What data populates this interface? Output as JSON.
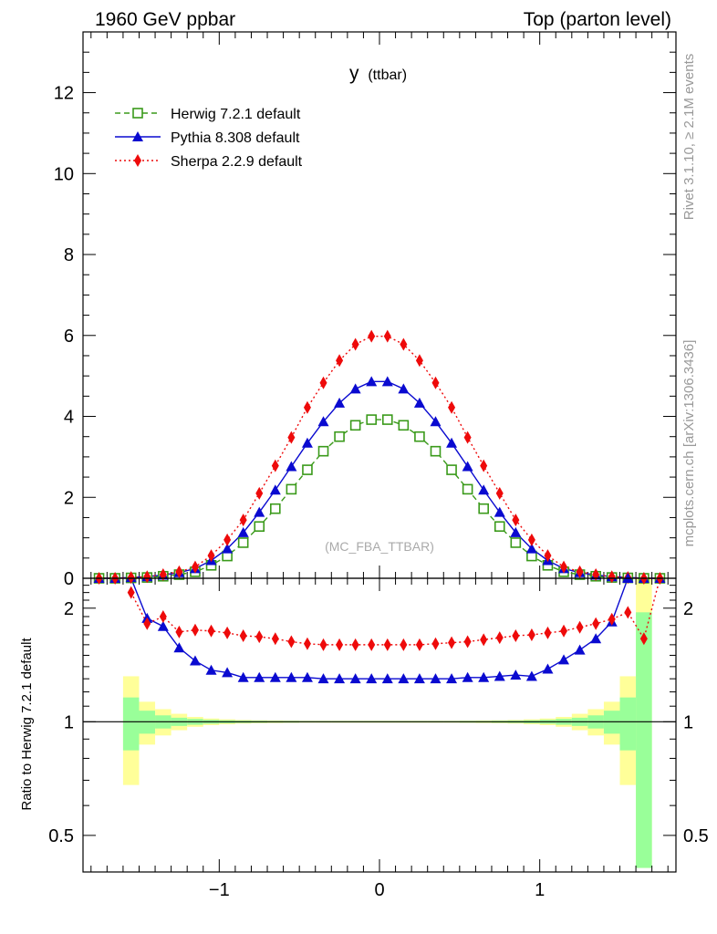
{
  "header": {
    "left": "1960 GeV ppbar",
    "right": "Top (parton level)"
  },
  "side": {
    "rivet": "Rivet 3.1.10, ≥ 2.1M events",
    "mcplots": "mcplots.cern.ch [arXiv:1306.3436]"
  },
  "chart_data": {
    "type": "line",
    "title_main": "y",
    "title_sub": "(ttbar)",
    "analysis": "(MC_FBA_TTBAR)",
    "ratio_ylabel": "Ratio to Herwig 7.2.1 default",
    "xlim": [
      -1.85,
      1.85
    ],
    "ylim": [
      0,
      13.5
    ],
    "ratio_ylim": [
      0.4,
      2.4
    ],
    "ratio_scale": "log",
    "x_ticks": [
      -1,
      0,
      1
    ],
    "x_tick_labels": [
      "−1",
      "0",
      "1"
    ],
    "y_ticks": [
      0,
      2,
      4,
      6,
      8,
      10,
      12
    ],
    "ratio_ticks": [
      0.5,
      1,
      2
    ],
    "ratio_tick_labels": [
      "0.5",
      "1",
      "2"
    ],
    "legend_position": "top-left",
    "x": [
      -1.75,
      -1.65,
      -1.55,
      -1.45,
      -1.35,
      -1.25,
      -1.15,
      -1.05,
      -0.95,
      -0.85,
      -0.75,
      -0.65,
      -0.55,
      -0.45,
      -0.35,
      -0.25,
      -0.15,
      -0.05,
      0.05,
      0.15,
      0.25,
      0.35,
      0.45,
      0.55,
      0.65,
      0.75,
      0.85,
      0.95,
      1.05,
      1.15,
      1.25,
      1.35,
      1.45,
      1.55,
      1.65,
      1.75
    ],
    "series": [
      {
        "name": "Herwig 7.2.1 default",
        "color": "#3a9a1a",
        "marker": "open-square",
        "linestyle": "dashed",
        "values": [
          0.0,
          0.0,
          0.01,
          0.02,
          0.05,
          0.09,
          0.16,
          0.32,
          0.55,
          0.88,
          1.28,
          1.72,
          2.2,
          2.68,
          3.14,
          3.5,
          3.78,
          3.92,
          3.92,
          3.78,
          3.5,
          3.14,
          2.68,
          2.2,
          1.72,
          1.28,
          0.88,
          0.55,
          0.32,
          0.16,
          0.09,
          0.05,
          0.02,
          0.01,
          0.0,
          0.0
        ]
      },
      {
        "name": "Pythia 8.308 default",
        "color": "#0a0ad0",
        "marker": "filled-triangle",
        "linestyle": "solid",
        "values": [
          0.0,
          0.0,
          0.02,
          0.04,
          0.08,
          0.14,
          0.24,
          0.44,
          0.73,
          1.13,
          1.63,
          2.18,
          2.76,
          3.34,
          3.87,
          4.33,
          4.68,
          4.86,
          4.86,
          4.68,
          4.33,
          3.87,
          3.34,
          2.76,
          2.18,
          1.63,
          1.13,
          0.73,
          0.44,
          0.24,
          0.14,
          0.08,
          0.04,
          0.02,
          0.0,
          0.0
        ]
      },
      {
        "name": "Sherpa 2.2.9 default",
        "color": "#ee0a0a",
        "marker": "filled-diamond",
        "linestyle": "dotted",
        "values": [
          0.0,
          0.0,
          0.02,
          0.04,
          0.09,
          0.16,
          0.28,
          0.56,
          0.95,
          1.44,
          2.1,
          2.78,
          3.48,
          4.22,
          4.83,
          5.38,
          5.78,
          5.98,
          5.98,
          5.78,
          5.38,
          4.83,
          4.22,
          3.48,
          2.78,
          2.1,
          1.44,
          0.95,
          0.56,
          0.28,
          0.16,
          0.09,
          0.04,
          0.02,
          0.0,
          0.0
        ]
      }
    ],
    "ratio": {
      "reference": 1.0,
      "band_x": [
        -1.55,
        -1.45,
        -1.35,
        -1.25,
        -1.15,
        -1.05,
        -0.95,
        -0.85,
        -0.75,
        -0.65,
        -0.55,
        -0.45,
        -0.35,
        -0.25,
        -0.15,
        -0.05,
        0.05,
        0.15,
        0.25,
        0.35,
        0.45,
        0.55,
        0.65,
        0.75,
        0.85,
        0.95,
        1.05,
        1.15,
        1.25,
        1.35,
        1.45,
        1.55,
        1.65
      ],
      "band_stat": [
        0.16,
        0.07,
        0.04,
        0.025,
        0.018,
        0.012,
        0.009,
        0.007,
        0.006,
        0.005,
        0.005,
        0.004,
        0.004,
        0.004,
        0.004,
        0.004,
        0.004,
        0.004,
        0.004,
        0.004,
        0.004,
        0.005,
        0.005,
        0.006,
        0.007,
        0.009,
        0.012,
        0.018,
        0.025,
        0.04,
        0.07,
        0.16,
        0.95
      ],
      "band_total": [
        0.32,
        0.13,
        0.08,
        0.05,
        0.03,
        0.02,
        0.015,
        0.011,
        0.009,
        0.008,
        0.007,
        0.006,
        0.006,
        0.006,
        0.006,
        0.006,
        0.006,
        0.006,
        0.006,
        0.006,
        0.006,
        0.007,
        0.008,
        0.009,
        0.011,
        0.015,
        0.02,
        0.03,
        0.05,
        0.08,
        0.13,
        0.32,
        1.6
      ],
      "series": [
        {
          "name": "Pythia 8.308 default",
          "x": [
            -1.55,
            -1.45,
            -1.35,
            -1.25,
            -1.15,
            -1.05,
            -0.95,
            -0.85,
            -0.75,
            -0.65,
            -0.55,
            -0.45,
            -0.35,
            -0.25,
            -0.15,
            -0.05,
            0.05,
            0.15,
            0.25,
            0.35,
            0.45,
            0.55,
            0.65,
            0.75,
            0.85,
            0.95,
            1.05,
            1.15,
            1.25,
            1.35,
            1.45,
            1.55
          ],
          "values": [
            3.0,
            1.88,
            1.79,
            1.57,
            1.45,
            1.37,
            1.35,
            1.31,
            1.31,
            1.31,
            1.31,
            1.31,
            1.3,
            1.3,
            1.3,
            1.3,
            1.3,
            1.3,
            1.3,
            1.3,
            1.3,
            1.31,
            1.31,
            1.32,
            1.33,
            1.32,
            1.38,
            1.46,
            1.55,
            1.66,
            1.84,
            2.4
          ]
        },
        {
          "name": "Sherpa 2.2.9 default",
          "x": [
            -1.55,
            -1.45,
            -1.35,
            -1.25,
            -1.15,
            -1.05,
            -0.95,
            -0.85,
            -0.75,
            -0.65,
            -0.55,
            -0.45,
            -0.35,
            -0.25,
            -0.15,
            -0.05,
            0.05,
            0.15,
            0.25,
            0.35,
            0.45,
            0.55,
            0.65,
            0.75,
            0.85,
            0.95,
            1.05,
            1.15,
            1.25,
            1.35,
            1.45,
            1.55,
            1.65,
            1.75
          ],
          "values": [
            2.2,
            1.82,
            1.9,
            1.73,
            1.75,
            1.74,
            1.72,
            1.69,
            1.68,
            1.66,
            1.63,
            1.61,
            1.6,
            1.6,
            1.6,
            1.6,
            1.6,
            1.6,
            1.6,
            1.61,
            1.62,
            1.63,
            1.65,
            1.67,
            1.69,
            1.7,
            1.72,
            1.74,
            1.78,
            1.82,
            1.87,
            1.95,
            1.66,
            2.5
          ]
        }
      ]
    }
  }
}
